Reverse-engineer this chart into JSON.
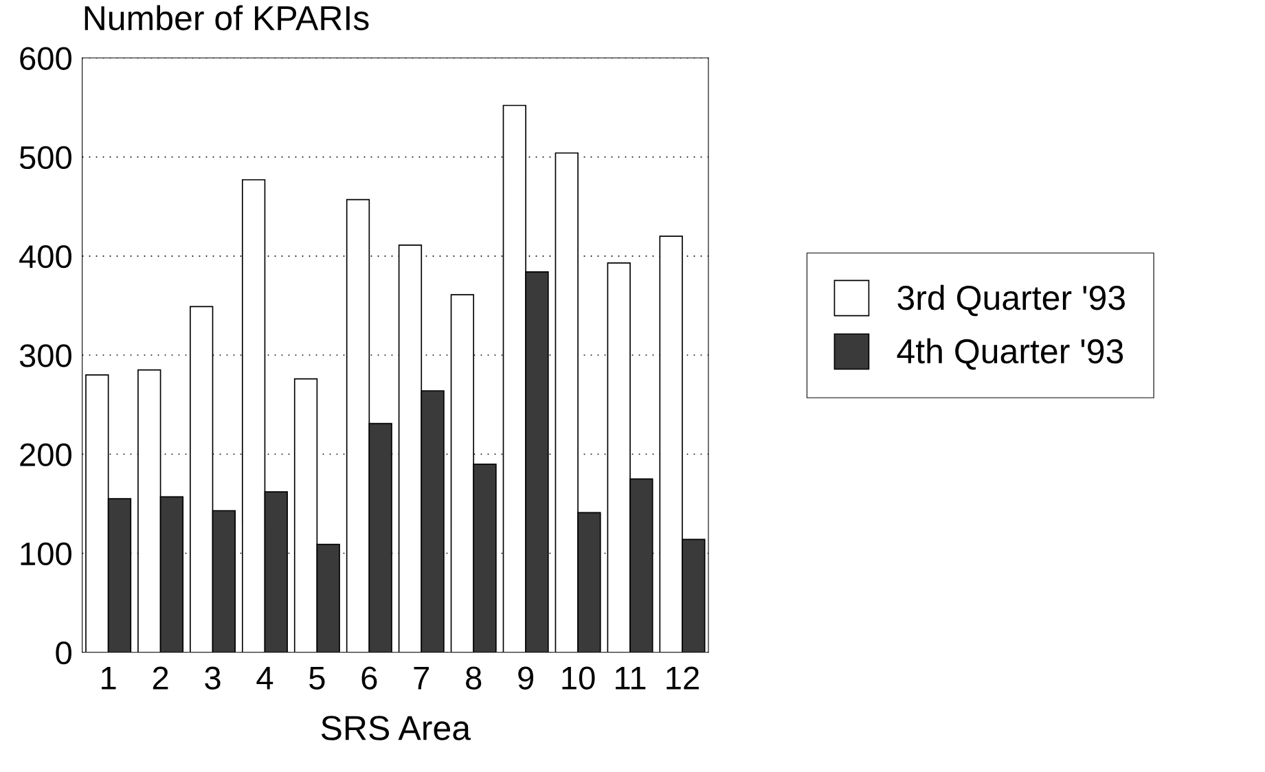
{
  "chart_data": {
    "type": "bar",
    "ylabel": "Number of KPARIs",
    "xlabel": "SRS Area",
    "categories": [
      "1",
      "2",
      "3",
      "4",
      "5",
      "6",
      "7",
      "8",
      "9",
      "10",
      "11",
      "12"
    ],
    "series": [
      {
        "name": "3rd Quarter '93",
        "color": "#ffffff",
        "values": [
          280,
          285,
          349,
          477,
          276,
          457,
          411,
          361,
          552,
          504,
          393,
          420
        ]
      },
      {
        "name": "4th Quarter '93",
        "color": "#3a3a3a",
        "values": [
          155,
          157,
          143,
          162,
          109,
          231,
          264,
          190,
          384,
          141,
          175,
          114
        ]
      }
    ],
    "ylim": [
      0,
      600
    ],
    "yticks": [
      0,
      100,
      200,
      300,
      400,
      500,
      600
    ],
    "grid": "y",
    "legend": "right"
  }
}
